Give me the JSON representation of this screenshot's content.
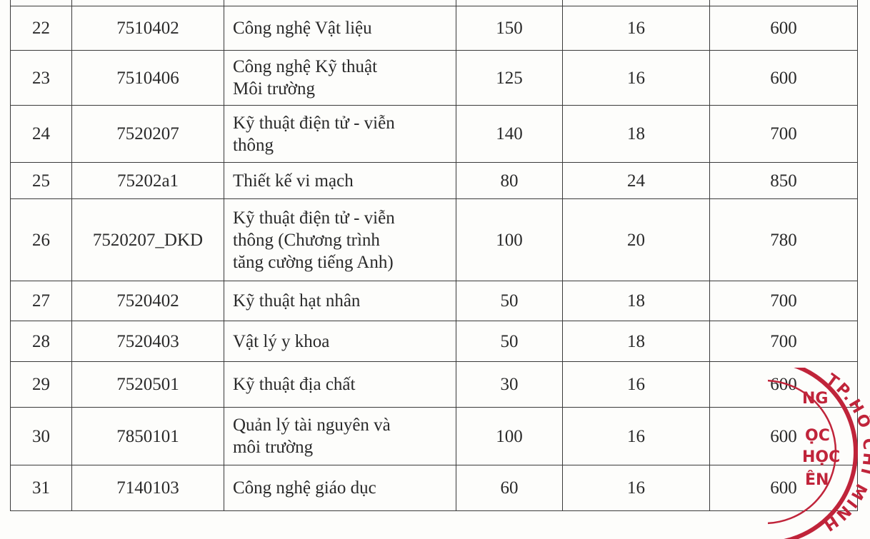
{
  "table": {
    "rows": [
      {
        "stt": "",
        "code": "",
        "name": "",
        "quota": "",
        "min_score": "",
        "max_score": ""
      },
      {
        "stt": "22",
        "code": "7510402",
        "name": "Công nghệ Vật liệu",
        "quota": "150",
        "min_score": "16",
        "max_score": "600"
      },
      {
        "stt": "23",
        "code": "7510406",
        "name": "Công nghệ Kỹ thuật\nMôi trường",
        "quota": "125",
        "min_score": "16",
        "max_score": "600"
      },
      {
        "stt": "24",
        "code": "7520207",
        "name": "Kỹ thuật điện tử - viễn\nthông",
        "quota": "140",
        "min_score": "18",
        "max_score": "700"
      },
      {
        "stt": "25",
        "code": "75202a1",
        "name": "Thiết kế vi mạch",
        "quota": "80",
        "min_score": "24",
        "max_score": "850"
      },
      {
        "stt": "26",
        "code": "7520207_DKD",
        "name": "Kỹ thuật điện tử - viễn\nthông (Chương trình\ntăng cường tiếng Anh)",
        "quota": "100",
        "min_score": "20",
        "max_score": "780"
      },
      {
        "stt": "27",
        "code": "7520402",
        "name": "Kỹ thuật hạt nhân",
        "quota": "50",
        "min_score": "18",
        "max_score": "700"
      },
      {
        "stt": "28",
        "code": "7520403",
        "name": "Vật lý y khoa",
        "quota": "50",
        "min_score": "18",
        "max_score": "700"
      },
      {
        "stt": "29",
        "code": "7520501",
        "name": "Kỹ thuật địa chất",
        "quota": "30",
        "min_score": "16",
        "max_score": "600"
      },
      {
        "stt": "30",
        "code": "7850101",
        "name": "Quản lý tài nguyên và\nmôi trường",
        "quota": "100",
        "min_score": "16",
        "max_score": "600"
      },
      {
        "stt": "31",
        "code": "7140103",
        "name": "Công nghệ giáo dục",
        "quota": "60",
        "min_score": "16",
        "max_score": "600"
      }
    ]
  },
  "stamp": {
    "outer_text": "TP.HỒ CHÍ MINH",
    "inner_lines": [
      "NG",
      "ỌC",
      "HỌC",
      "ÊN"
    ],
    "color": "#c0243a"
  }
}
